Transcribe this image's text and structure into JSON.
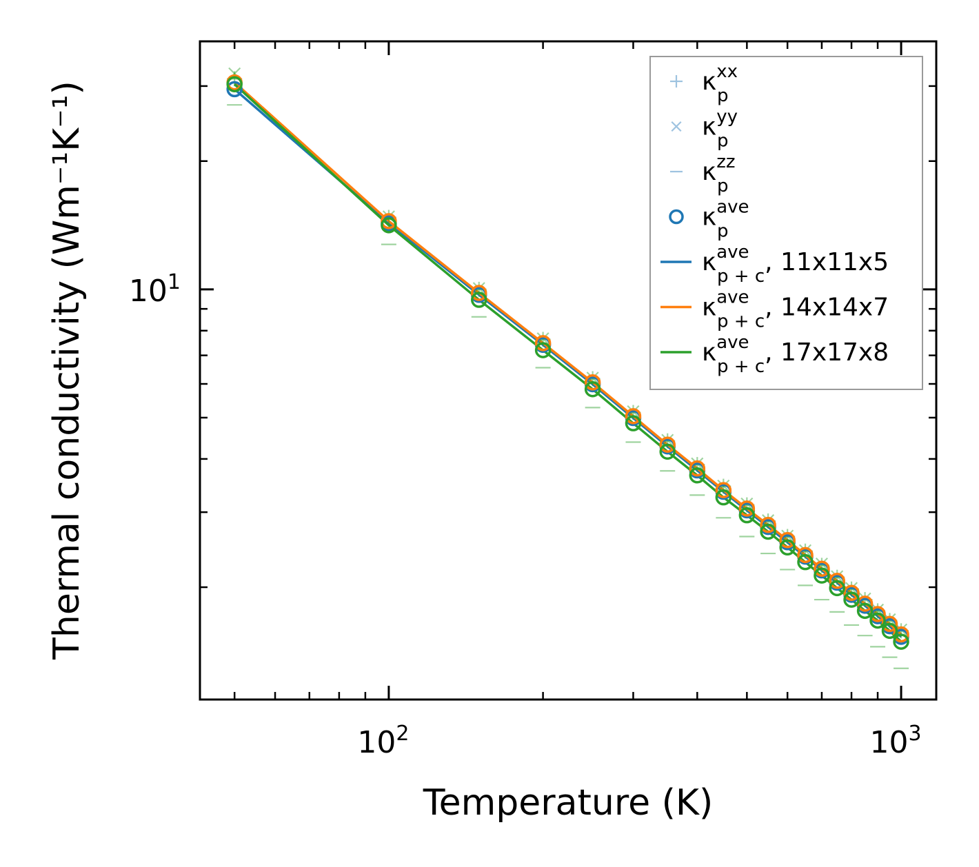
{
  "chart_data": {
    "type": "line",
    "xscale": "log",
    "yscale": "log",
    "xlabel": "Temperature (K)",
    "ylabel": "Thermal conductivity (Wm⁻¹K⁻¹)",
    "xlim": [
      42.8,
      1171
    ],
    "ylim": [
      1.09,
      38.2
    ],
    "xticks": [
      {
        "base": "10",
        "exp": "2",
        "value": 100
      },
      {
        "base": "10",
        "exp": "3",
        "value": 1000
      }
    ],
    "yticks": [
      {
        "base": "10",
        "exp": "1",
        "value": 10
      }
    ],
    "legend_position": "top-right",
    "x": [
      50,
      100,
      150,
      200,
      250,
      300,
      350,
      400,
      450,
      500,
      550,
      600,
      650,
      700,
      750,
      800,
      850,
      900,
      950,
      1000
    ],
    "series": [
      {
        "name": "kp_xx",
        "kind": "scatter",
        "marker": "plus",
        "color": "#2ca02c",
        "values": [
          31.2,
          14.75,
          10.0,
          7.63,
          6.17,
          5.14,
          4.41,
          3.88,
          3.45,
          3.12,
          2.86,
          2.63,
          2.43,
          2.25,
          2.11,
          1.98,
          1.87,
          1.76,
          1.67,
          1.58
        ]
      },
      {
        "name": "kp_yy",
        "kind": "scatter",
        "marker": "x",
        "color": "#2ca02c",
        "values": [
          32.1,
          14.82,
          10.06,
          7.67,
          6.2,
          5.17,
          4.43,
          3.9,
          3.46,
          3.14,
          2.87,
          2.64,
          2.44,
          2.27,
          2.12,
          1.99,
          1.88,
          1.77,
          1.68,
          1.59
        ]
      },
      {
        "name": "kp_zz",
        "kind": "scatter",
        "marker": "hline",
        "color": "#2ca02c",
        "values": [
          27.1,
          12.75,
          8.62,
          6.55,
          5.28,
          4.38,
          3.75,
          3.29,
          2.91,
          2.63,
          2.4,
          2.2,
          2.02,
          1.87,
          1.75,
          1.63,
          1.54,
          1.45,
          1.37,
          1.29
        ]
      },
      {
        "name": "kpc_ave_11x11x5",
        "kind": "line+circle",
        "color": "#1f77b4",
        "values": [
          29.5,
          14.3,
          9.71,
          7.41,
          5.99,
          4.99,
          4.28,
          3.76,
          3.35,
          3.03,
          2.77,
          2.55,
          2.36,
          2.19,
          2.05,
          1.92,
          1.81,
          1.71,
          1.62,
          1.53
        ]
      },
      {
        "name": "kpc_ave_14x14x7",
        "kind": "line+circle",
        "color": "#ff7f0e",
        "values": [
          30.6,
          14.46,
          9.81,
          7.48,
          6.05,
          5.04,
          4.32,
          3.8,
          3.38,
          3.06,
          2.8,
          2.58,
          2.38,
          2.21,
          2.07,
          1.94,
          1.83,
          1.73,
          1.64,
          1.55
        ]
      },
      {
        "name": "kpc_ave_17x17x8",
        "kind": "line+circle",
        "color": "#2ca02c",
        "values": [
          30.3,
          14.14,
          9.45,
          7.2,
          5.83,
          4.85,
          4.16,
          3.66,
          3.25,
          2.95,
          2.7,
          2.48,
          2.29,
          2.13,
          1.99,
          1.87,
          1.76,
          1.67,
          1.58,
          1.49
        ]
      }
    ],
    "legend": [
      {
        "symbol": "plus",
        "color": "#9ec3e0",
        "base": "κ",
        "sup": "xx",
        "sub": "p",
        "suffix": ""
      },
      {
        "symbol": "x",
        "color": "#9ec3e0",
        "base": "κ",
        "sup": "yy",
        "sub": "p",
        "suffix": ""
      },
      {
        "symbol": "hline",
        "color": "#9ec3e0",
        "base": "κ",
        "sup": "zz",
        "sub": "p",
        "suffix": ""
      },
      {
        "symbol": "circle",
        "color": "#1f77b4",
        "base": "κ",
        "sup": "ave",
        "sub": "p",
        "suffix": ""
      },
      {
        "symbol": "line",
        "color": "#1f77b4",
        "base": "κ",
        "sup": "ave",
        "sub": "p + c",
        "suffix": ", 11x11x5"
      },
      {
        "symbol": "line",
        "color": "#ff7f0e",
        "base": "κ",
        "sup": "ave",
        "sub": "p + c",
        "suffix": ", 14x14x7"
      },
      {
        "symbol": "line",
        "color": "#2ca02c",
        "base": "κ",
        "sup": "ave",
        "sub": "p + c",
        "suffix": ", 17x17x8"
      }
    ]
  }
}
